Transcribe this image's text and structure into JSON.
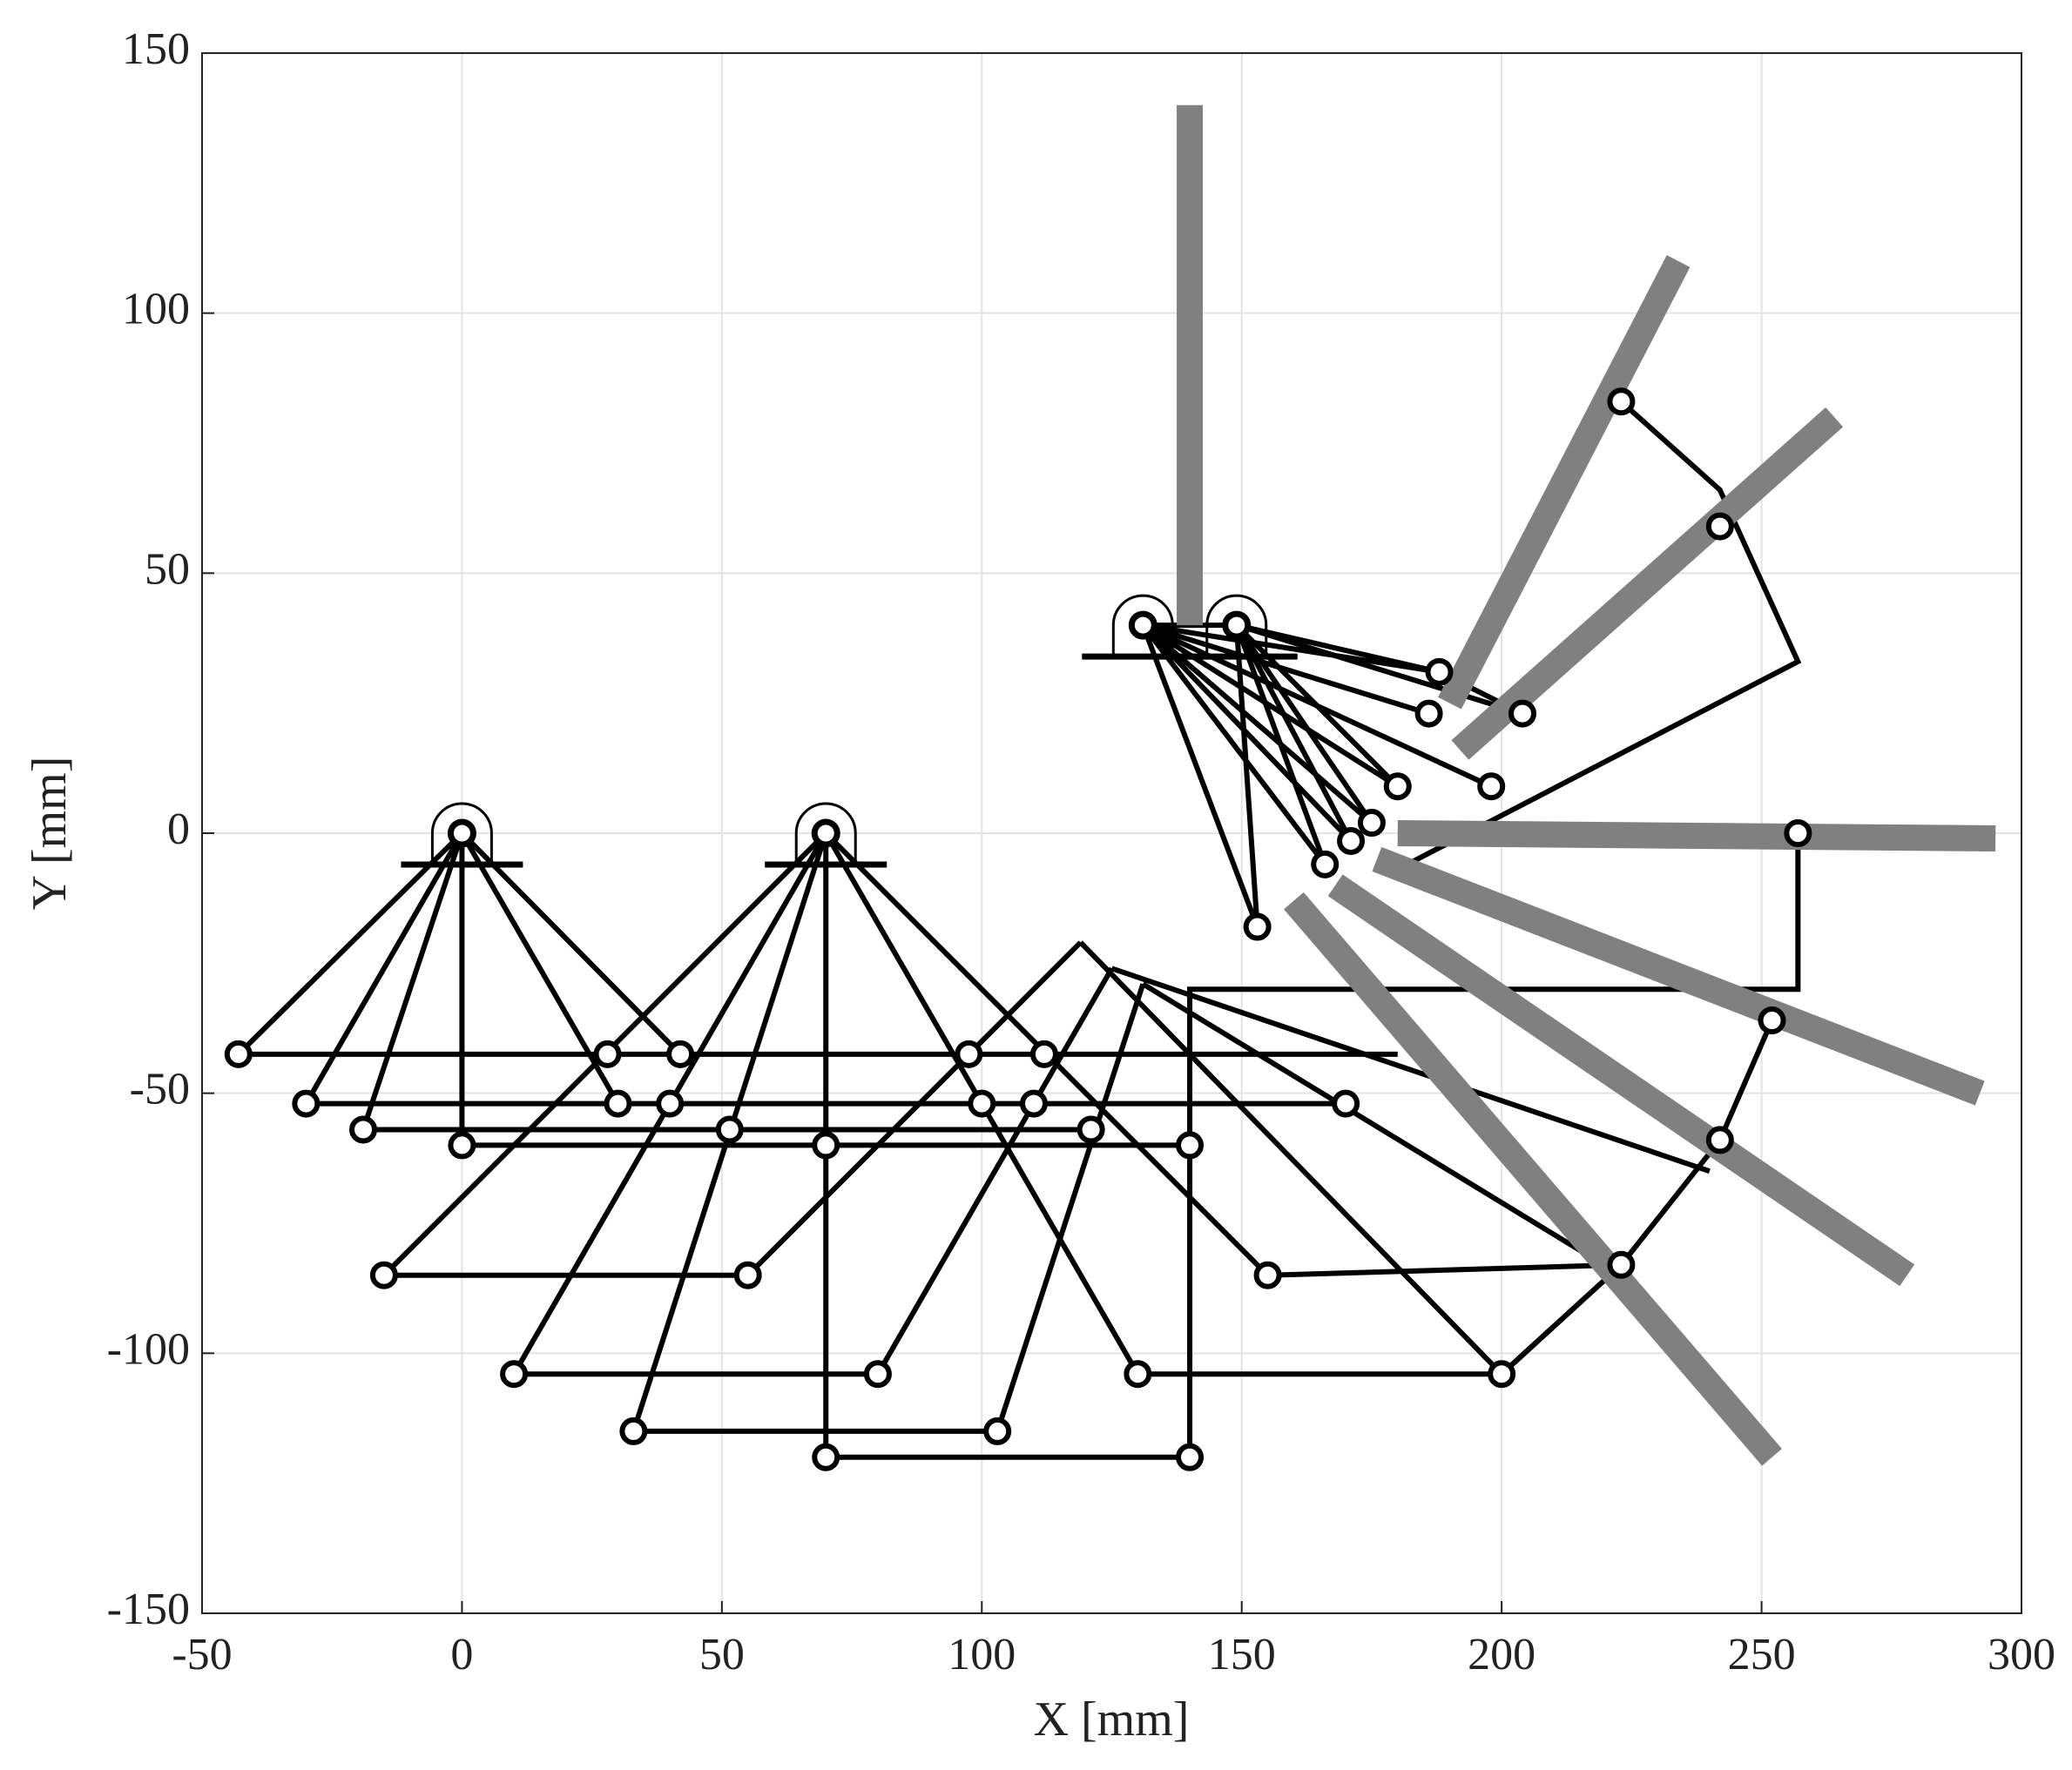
{
  "chart_data": {
    "type": "mechanism",
    "xlabel": "X [mm]",
    "ylabel": "Y [mm]",
    "xlim": [
      -50,
      300
    ],
    "ylim": [
      -150,
      150
    ],
    "xticks": [
      -50,
      0,
      50,
      100,
      150,
      200,
      250,
      300
    ],
    "yticks": [
      -150,
      -100,
      -50,
      0,
      50,
      100,
      150
    ],
    "grid": true,
    "link_color": "#000000",
    "bar_color": "#808080",
    "links": [
      {
        "x": [
          0,
          -43
        ],
        "y": [
          0,
          -42.5
        ]
      },
      {
        "x": [
          0,
          -30
        ],
        "y": [
          0,
          -52
        ]
      },
      {
        "x": [
          0,
          -19
        ],
        "y": [
          0,
          -57
        ]
      },
      {
        "x": [
          0,
          0
        ],
        "y": [
          0,
          -60
        ]
      },
      {
        "x": [
          0,
          30
        ],
        "y": [
          0,
          -52
        ]
      },
      {
        "x": [
          0,
          42
        ],
        "y": [
          0,
          -42.5
        ]
      },
      {
        "x": [
          -43,
          180
        ],
        "y": [
          -42.5,
          -42.5
        ]
      },
      {
        "x": [
          -30,
          170
        ],
        "y": [
          -52,
          -52
        ]
      },
      {
        "x": [
          -19,
          121
        ],
        "y": [
          -57,
          -57
        ]
      },
      {
        "x": [
          0,
          140
        ],
        "y": [
          -60,
          -60
        ]
      },
      {
        "x": [
          70,
          -15
        ],
        "y": [
          0,
          -85
        ]
      },
      {
        "x": [
          70,
          10
        ],
        "y": [
          0,
          -104
        ]
      },
      {
        "x": [
          70,
          33
        ],
        "y": [
          0,
          -115
        ]
      },
      {
        "x": [
          70,
          70
        ],
        "y": [
          0,
          -120
        ]
      },
      {
        "x": [
          70,
          155
        ],
        "y": [
          0,
          -85
        ]
      },
      {
        "x": [
          70,
          130
        ],
        "y": [
          0,
          -104
        ]
      },
      {
        "x": [
          -15,
          55
        ],
        "y": [
          -85,
          -85
        ]
      },
      {
        "x": [
          10,
          80
        ],
        "y": [
          -104,
          -104
        ]
      },
      {
        "x": [
          33,
          103
        ],
        "y": [
          -115,
          -115
        ]
      },
      {
        "x": [
          70,
          140
        ],
        "y": [
          -120,
          -120
        ]
      },
      {
        "x": [
          155,
          223
        ],
        "y": [
          -85,
          -83
        ]
      },
      {
        "x": [
          130,
          200
        ],
        "y": [
          -104,
          -104
        ]
      },
      {
        "x": [
          55,
          119
        ],
        "y": [
          -85,
          -21
        ]
      },
      {
        "x": [
          80,
          125
        ],
        "y": [
          -104,
          -26
        ]
      },
      {
        "x": [
          103,
          131
        ],
        "y": [
          -115,
          -29
        ]
      },
      {
        "x": [
          140,
          140,
          257,
          257
        ],
        "y": [
          -120,
          -30,
          -30,
          0
        ]
      },
      {
        "x": [
          119,
          200,
          223
        ],
        "y": [
          -21,
          -104,
          -83
        ]
      },
      {
        "x": [
          125,
          240
        ],
        "y": [
          -26,
          -65
        ]
      },
      {
        "x": [
          131,
          218
        ],
        "y": [
          -29,
          -82
        ]
      },
      {
        "x": [
          200,
          223,
          242,
          252
        ],
        "y": [
          -104,
          -83,
          -59,
          -36
        ]
      },
      {
        "x": [
          252,
          180
        ],
        "y": [
          -36,
          -8
        ]
      },
      {
        "x": [
          223,
          242,
          257,
          178
        ],
        "y": [
          83,
          66,
          33,
          -8
        ]
      },
      {
        "x": [
          131,
          149
        ],
        "y": [
          40,
          40
        ]
      },
      {
        "x": [
          131,
          188
        ],
        "y": [
          40,
          31
        ]
      },
      {
        "x": [
          149,
          188
        ],
        "y": [
          40,
          31
        ]
      },
      {
        "x": [
          131,
          186
        ],
        "y": [
          40,
          23
        ]
      },
      {
        "x": [
          149,
          204
        ],
        "y": [
          40,
          23
        ]
      },
      {
        "x": [
          131,
          198
        ],
        "y": [
          40,
          9
        ]
      },
      {
        "x": [
          131,
          180
        ],
        "y": [
          40,
          9
        ]
      },
      {
        "x": [
          149,
          180
        ],
        "y": [
          40,
          9
        ]
      },
      {
        "x": [
          131,
          175
        ],
        "y": [
          40,
          2
        ]
      },
      {
        "x": [
          149,
          175
        ],
        "y": [
          40,
          2
        ]
      },
      {
        "x": [
          131,
          171
        ],
        "y": [
          40,
          -1.5
        ]
      },
      {
        "x": [
          149,
          171
        ],
        "y": [
          40,
          -1.5
        ]
      },
      {
        "x": [
          131,
          166
        ],
        "y": [
          40,
          -6
        ]
      },
      {
        "x": [
          149,
          166
        ],
        "y": [
          40,
          -6
        ]
      },
      {
        "x": [
          131,
          153
        ],
        "y": [
          40,
          -18
        ]
      },
      {
        "x": [
          149,
          153
        ],
        "y": [
          40,
          -18
        ]
      },
      {
        "x": [
          188,
          204
        ],
        "y": [
          31,
          23
        ]
      }
    ],
    "bars": [
      {
        "x": [
          140,
          140
        ],
        "y": [
          140,
          40
        ]
      },
      {
        "x": [
          234,
          190
        ],
        "y": [
          110,
          25
        ]
      },
      {
        "x": [
          264,
          192
        ],
        "y": [
          80,
          16
        ]
      },
      {
        "x": [
          180,
          295
        ],
        "y": [
          0,
          -1
        ]
      },
      {
        "x": [
          176,
          292
        ],
        "y": [
          -5,
          -50
        ]
      },
      {
        "x": [
          168,
          278
        ],
        "y": [
          -10,
          -85
        ]
      },
      {
        "x": [
          160,
          252
        ],
        "y": [
          -13,
          -120
        ]
      }
    ],
    "joints": {
      "x": [
        -43,
        -30,
        -19,
        0,
        30,
        42,
        28,
        40,
        51.5,
        70,
        97.5,
        112,
        100,
        110,
        121,
        140,
        170,
        -15,
        55,
        155,
        10,
        80,
        130,
        200,
        33,
        103,
        70,
        140,
        223,
        242,
        252,
        257,
        242,
        223,
        188,
        186,
        204,
        198,
        180,
        175,
        171,
        166,
        153
      ],
      "y": [
        -42.5,
        -52,
        -57,
        -60,
        -52,
        -42.5,
        -42.5,
        -52,
        -57,
        -60,
        -42.5,
        -42.5,
        -52,
        -52,
        -57,
        -60,
        -52,
        -85,
        -85,
        -85,
        -104,
        -104,
        -104,
        -104,
        -115,
        -115,
        -120,
        -120,
        -83,
        -59,
        -36,
        0,
        59,
        83,
        31,
        23,
        23,
        9,
        9,
        2,
        -1.5,
        -6,
        -18
      ]
    },
    "pivots": {
      "x": [
        0,
        70,
        131,
        149
      ],
      "y": [
        0,
        0,
        40,
        40
      ]
    }
  }
}
